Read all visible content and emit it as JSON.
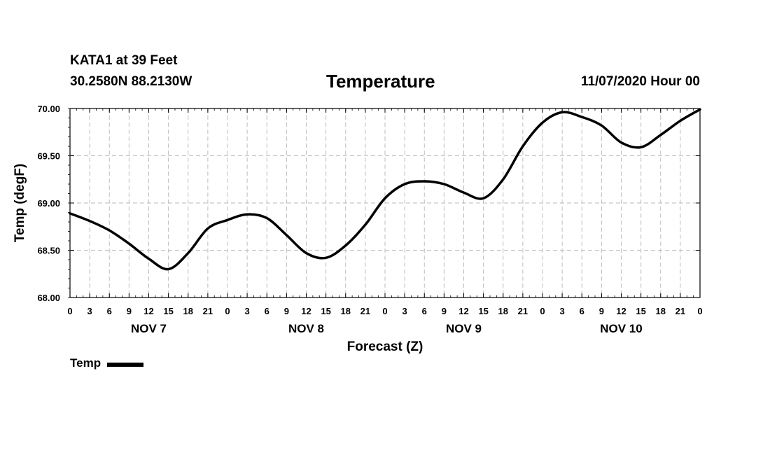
{
  "header": {
    "station": "KATA1 at 39 Feet",
    "coords": "30.2580N 88.2130W",
    "datetime": "11/07/2020 Hour 00"
  },
  "chart_data": {
    "type": "line",
    "title": "Temperature",
    "xlabel": "Forecast (Z)",
    "ylabel": "Temp (degF)",
    "xlim": [
      0,
      96
    ],
    "ylim": [
      68.0,
      70.0
    ],
    "y_ticks": [
      "68.00",
      "68.50",
      "69.00",
      "69.50",
      "70.00"
    ],
    "y_tick_values": [
      68.0,
      68.5,
      69.0,
      69.5,
      70.0
    ],
    "x_tick_labels": [
      "0",
      "3",
      "6",
      "9",
      "12",
      "15",
      "18",
      "21",
      "0",
      "3",
      "6",
      "9",
      "12",
      "15",
      "18",
      "21",
      "0",
      "3",
      "6",
      "9",
      "12",
      "15",
      "18",
      "21",
      "0",
      "3",
      "6",
      "9",
      "12",
      "15",
      "18",
      "21",
      "0"
    ],
    "x_tick_hours": [
      0,
      3,
      6,
      9,
      12,
      15,
      18,
      21,
      24,
      27,
      30,
      33,
      36,
      39,
      42,
      45,
      48,
      51,
      54,
      57,
      60,
      63,
      66,
      69,
      72,
      75,
      78,
      81,
      84,
      87,
      90,
      93,
      96
    ],
    "day_labels": [
      {
        "label": "NOV 7",
        "hour": 12
      },
      {
        "label": "NOV 8",
        "hour": 36
      },
      {
        "label": "NOV 9",
        "hour": 60
      },
      {
        "label": "NOV 10",
        "hour": 84
      }
    ],
    "grid": true,
    "legend_position": "bottom-left",
    "series": [
      {
        "name": "Temp",
        "color": "#000000",
        "x": [
          0,
          3,
          6,
          9,
          12,
          15,
          18,
          21,
          24,
          27,
          30,
          33,
          36,
          39,
          42,
          45,
          48,
          51,
          54,
          57,
          60,
          63,
          66,
          69,
          72,
          75,
          78,
          81,
          84,
          87,
          90,
          93,
          96
        ],
        "values": [
          68.89,
          68.81,
          68.71,
          68.57,
          68.41,
          68.3,
          68.47,
          68.73,
          68.82,
          68.88,
          68.84,
          68.66,
          68.47,
          68.42,
          68.55,
          68.77,
          69.05,
          69.2,
          69.23,
          69.2,
          69.11,
          69.05,
          69.25,
          69.6,
          69.85,
          69.96,
          69.91,
          69.82,
          69.64,
          69.59,
          69.72,
          69.87,
          69.99
        ]
      }
    ]
  }
}
